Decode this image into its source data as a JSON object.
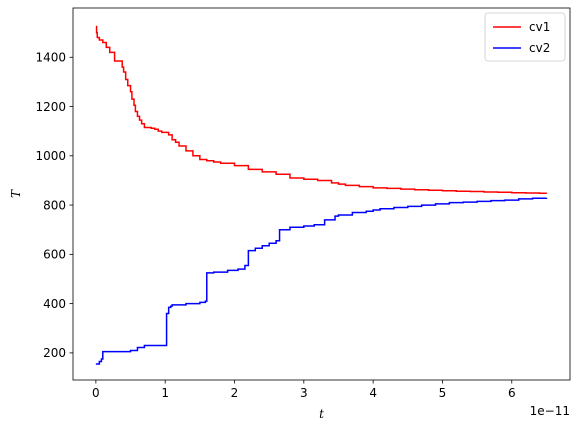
{
  "chart_data": {
    "type": "line",
    "title": "",
    "xlabel": "t",
    "ylabel": "T",
    "x_offset_label": "1e−11",
    "xlim": [
      -0.33,
      6.84
    ],
    "ylim": [
      90,
      1600
    ],
    "x_ticks": [
      0,
      1,
      2,
      3,
      4,
      5,
      6
    ],
    "y_ticks": [
      200,
      400,
      600,
      800,
      1000,
      1200,
      1400
    ],
    "grid": false,
    "legend_position": "top-right",
    "series": [
      {
        "name": "cv1",
        "color": "#ff0000",
        "x": [
          0.0,
          0.01,
          0.02,
          0.05,
          0.1,
          0.15,
          0.2,
          0.27,
          0.27,
          0.38,
          0.38,
          0.4,
          0.43,
          0.46,
          0.5,
          0.52,
          0.55,
          0.57,
          0.6,
          0.63,
          0.66,
          0.7,
          0.75,
          0.8,
          0.85,
          0.9,
          0.95,
          1.05,
          1.1,
          1.15,
          1.2,
          1.3,
          1.4,
          1.5,
          1.6,
          1.7,
          1.8,
          2.0,
          2.2,
          2.4,
          2.6,
          2.8,
          3.0,
          3.2,
          3.4,
          3.5,
          3.6,
          3.8,
          4.0,
          4.2,
          4.4,
          4.6,
          4.8,
          5.0,
          5.2,
          5.4,
          5.6,
          5.8,
          6.0,
          6.2,
          6.4,
          6.5
        ],
        "y": [
          1525,
          1500,
          1480,
          1470,
          1460,
          1440,
          1420,
          1395,
          1385,
          1375,
          1360,
          1340,
          1310,
          1285,
          1260,
          1230,
          1205,
          1180,
          1160,
          1145,
          1130,
          1115,
          1115,
          1112,
          1108,
          1100,
          1095,
          1085,
          1065,
          1055,
          1040,
          1020,
          1000,
          985,
          980,
          975,
          970,
          960,
          945,
          935,
          925,
          910,
          905,
          900,
          890,
          885,
          880,
          875,
          870,
          868,
          865,
          862,
          860,
          858,
          856,
          855,
          853,
          852,
          850,
          849,
          848,
          847
        ]
      },
      {
        "name": "cv2",
        "color": "#0000ff",
        "x": [
          0.0,
          0.05,
          0.08,
          0.1,
          0.3,
          0.5,
          0.6,
          0.7,
          1.0,
          1.02,
          1.05,
          1.08,
          1.1,
          1.3,
          1.5,
          1.58,
          1.6,
          1.7,
          1.9,
          2.05,
          2.15,
          2.2,
          2.3,
          2.4,
          2.5,
          2.6,
          2.65,
          2.8,
          3.0,
          3.15,
          3.3,
          3.45,
          3.5,
          3.7,
          3.9,
          4.0,
          4.1,
          4.3,
          4.5,
          4.7,
          4.9,
          5.1,
          5.3,
          5.5,
          5.7,
          5.9,
          6.1,
          6.3,
          6.5
        ],
        "y": [
          155,
          165,
          175,
          205,
          205,
          210,
          222,
          230,
          230,
          360,
          385,
          390,
          395,
          400,
          405,
          410,
          525,
          528,
          535,
          540,
          555,
          615,
          625,
          635,
          645,
          655,
          700,
          710,
          715,
          720,
          740,
          755,
          760,
          770,
          775,
          780,
          785,
          790,
          795,
          800,
          805,
          810,
          812,
          815,
          818,
          820,
          825,
          828,
          830
        ]
      }
    ]
  }
}
